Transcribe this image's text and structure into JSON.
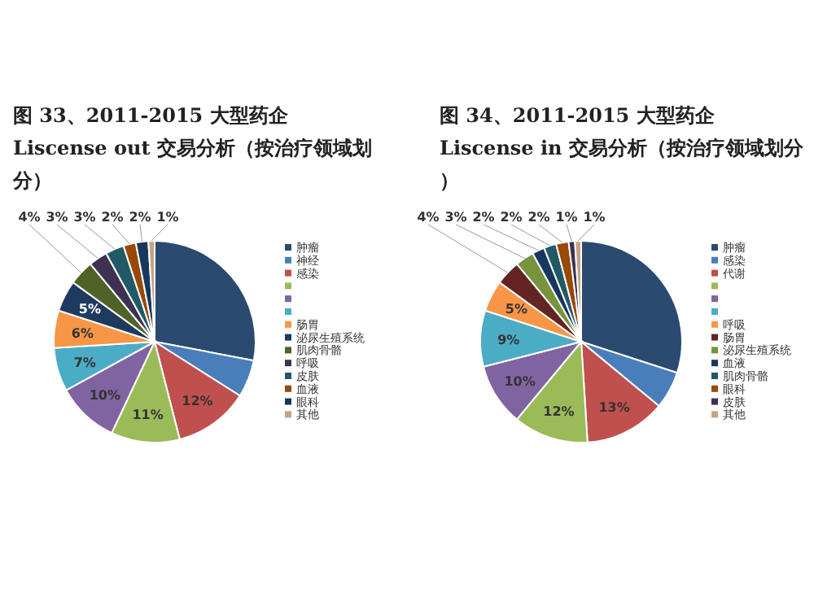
{
  "chart_data": [
    {
      "type": "pie",
      "title": "图 33、2011-2015 大型药企 Liscense out 交易分析（按治疗领域划分）",
      "legend": "right",
      "categories": [
        "肿瘤",
        "神经",
        "感染",
        null,
        null,
        null,
        "肠胃",
        "泌尿生殖系统",
        "肌肉骨骼",
        "呼吸",
        "皮肤",
        "血液",
        "眼科",
        "其他"
      ],
      "values": [
        28,
        6,
        12,
        11,
        10,
        7,
        6,
        5,
        4,
        3,
        3,
        2,
        2,
        1
      ],
      "value_labels": [
        null,
        null,
        "12%",
        "11%",
        "10%",
        "7%",
        "6%",
        "5%",
        "4%",
        "3%",
        "3%",
        "2%",
        "2%",
        "1%"
      ],
      "colors": [
        "#2b4a6f",
        "#4a7ebb",
        "#c0504d",
        "#9bbb59",
        "#8064a2",
        "#4bacc6",
        "#f79646",
        "#1f3a5f",
        "#4f6228",
        "#3f3151",
        "#215967",
        "#984807",
        "#17375e",
        "#c4a484"
      ]
    },
    {
      "type": "pie",
      "title": "图 34、2011-2015 大型药企 Liscense in 交易分析（按治疗领域划分）",
      "legend": "right",
      "categories": [
        "肿瘤",
        "感染",
        "代谢",
        null,
        null,
        null,
        "呼吸",
        "肠胃",
        "泌尿生殖系统",
        "血液",
        "肌肉骨骼",
        "眼科",
        "皮肤",
        "其他"
      ],
      "values": [
        30,
        6,
        13,
        12,
        10,
        9,
        5,
        4,
        3,
        2,
        2,
        2,
        1,
        1
      ],
      "value_labels": [
        null,
        null,
        "13%",
        "12%",
        "10%",
        "9%",
        "5%",
        "4%",
        "3%",
        "2%",
        "2%",
        "2%",
        "1%",
        "1%"
      ],
      "colors": [
        "#2b4a6f",
        "#4a7ebb",
        "#c0504d",
        "#9bbb59",
        "#8064a2",
        "#4bacc6",
        "#f79646",
        "#632523",
        "#77933c",
        "#17375e",
        "#215967",
        "#984807",
        "#3f3151",
        "#c4a484"
      ]
    }
  ]
}
